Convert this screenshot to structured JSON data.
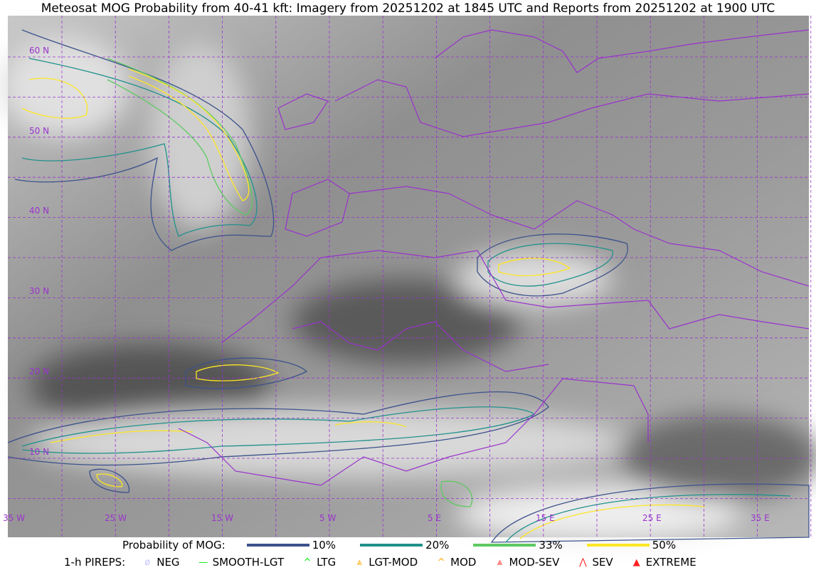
{
  "title": "Meteosat MOG Probability from 40-41 kft: Imagery from 20251202 at 1845 UTC and Reports from 20251202 at 1900 UTC",
  "map": {
    "lat_labels": [
      "60 N",
      "50 N",
      "40 N",
      "30 N",
      "20 N",
      "10 N"
    ],
    "lon_labels": [
      "35 W",
      "25 W",
      "15 W",
      "5 W",
      "5 E",
      "15 E",
      "25 E",
      "35 E"
    ],
    "grid_color": "#9933cc",
    "border_color": "#9933cc"
  },
  "legend": {
    "prob_label": "Probability of MOG:",
    "prob_items": [
      {
        "label": "10%",
        "color": "#3b528b"
      },
      {
        "label": "20%",
        "color": "#21918c"
      },
      {
        "label": "33%",
        "color": "#5ec962"
      },
      {
        "label": "50%",
        "color": "#fde725"
      }
    ],
    "pireps_label": "1-h PIREPS:",
    "pireps_items": [
      {
        "label": "NEG",
        "icon": "null-circle-icon",
        "color": "#c8c8ff",
        "glyph": "ø"
      },
      {
        "label": "SMOOTH-LGT",
        "icon": "dash-icon",
        "color": "#00ee00",
        "glyph": "—"
      },
      {
        "label": "LTG",
        "icon": "caret-icon",
        "color": "#00ee00",
        "glyph": "^"
      },
      {
        "label": "LGT-MOD",
        "icon": "caret-underline-icon",
        "color": "#ffaa00",
        "glyph": "⩓"
      },
      {
        "label": "MOD",
        "icon": "caret-icon",
        "color": "#ffaa00",
        "glyph": "^"
      },
      {
        "label": "MOD-SEV",
        "icon": "double-caret-underline-icon",
        "color": "#ff3030",
        "glyph": "⩓"
      },
      {
        "label": "SEV",
        "icon": "double-caret-icon",
        "color": "#ff3030",
        "glyph": "⋀"
      },
      {
        "label": "EXTREME",
        "icon": "filled-triangle-icon",
        "color": "#ff2020",
        "glyph": "▲"
      }
    ]
  }
}
